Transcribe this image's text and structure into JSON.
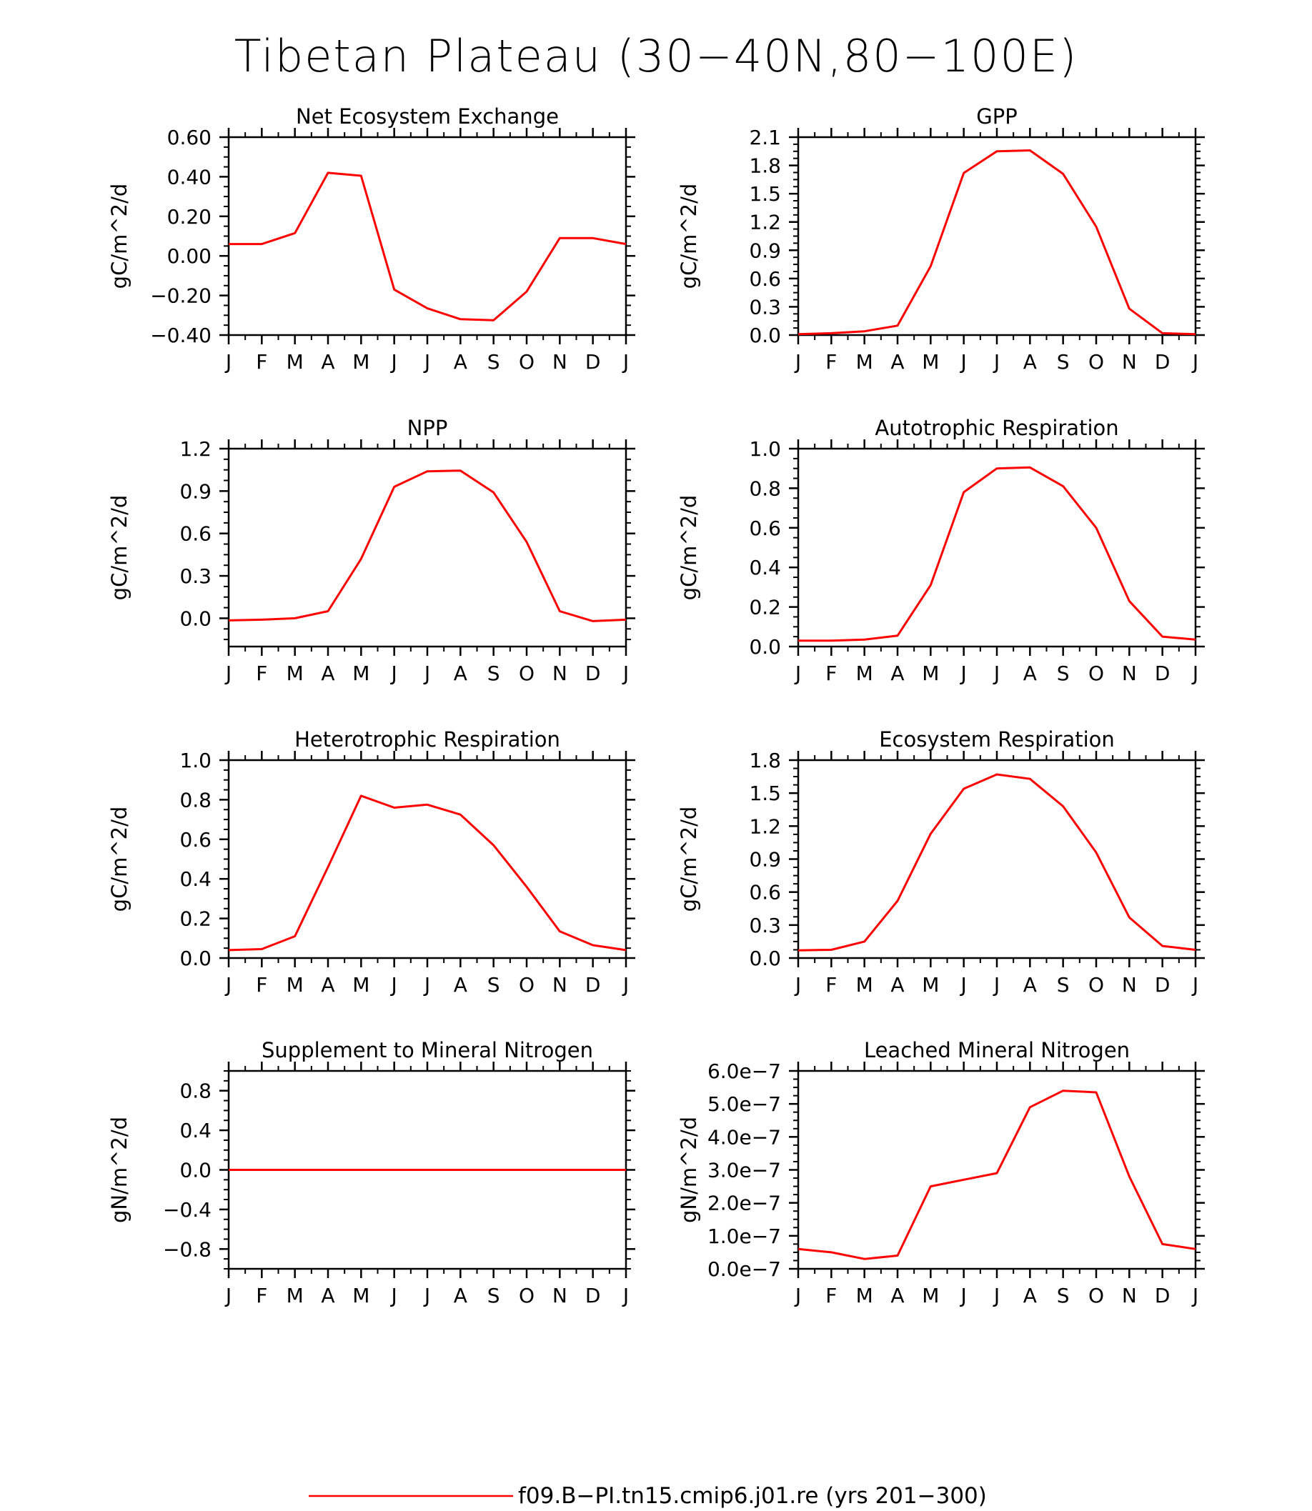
{
  "figure": {
    "title": "Tibetan Plateau (30−40N,80−100E)",
    "legend": {
      "label": "f09.B−PI.tn15.cmip6.j01.re (yrs 201−300)",
      "line_color": "#ff0000",
      "placement": "bottom-center"
    }
  },
  "chart_data": [
    {
      "type": "line",
      "title": "Net Ecosystem Exchange",
      "ylabel": "gC/m^2/d",
      "ylim": [
        -0.4,
        0.6
      ],
      "yticks": [
        -0.4,
        -0.2,
        0.0,
        0.2,
        0.4,
        0.6
      ],
      "ytick_labels": [
        "−0.40",
        "−0.20",
        "0.00",
        "0.20",
        "0.40",
        "0.60"
      ],
      "categories": [
        "J",
        "F",
        "M",
        "A",
        "M",
        "J",
        "J",
        "A",
        "S",
        "O",
        "N",
        "D",
        "J"
      ],
      "series": [
        {
          "color": "#ff0000",
          "values": [
            0.06,
            0.06,
            0.115,
            0.42,
            0.405,
            -0.17,
            -0.265,
            -0.32,
            -0.325,
            -0.18,
            0.09,
            0.09,
            0.06
          ]
        }
      ]
    },
    {
      "type": "line",
      "title": "GPP",
      "ylabel": "gC/m^2/d",
      "ylim": [
        0,
        2.1
      ],
      "yticks": [
        0,
        0.3,
        0.6,
        0.9,
        1.2,
        1.5,
        1.8,
        2.1
      ],
      "ytick_labels": [
        "0.0",
        "0.3",
        "0.6",
        "0.9",
        "1.2",
        "1.5",
        "1.8",
        "2.1"
      ],
      "categories": [
        "J",
        "F",
        "M",
        "A",
        "M",
        "J",
        "J",
        "A",
        "S",
        "O",
        "N",
        "D",
        "J"
      ],
      "series": [
        {
          "color": "#ff0000",
          "values": [
            0.01,
            0.02,
            0.04,
            0.1,
            0.73,
            1.72,
            1.95,
            1.96,
            1.71,
            1.15,
            0.28,
            0.02,
            0.01
          ]
        }
      ]
    },
    {
      "type": "line",
      "title": "NPP",
      "ylabel": "gC/m^2/d",
      "ylim": [
        -0.2,
        1.2
      ],
      "yticks": [
        0,
        0.3,
        0.6,
        0.9,
        1.2
      ],
      "ytick_labels": [
        "0.0",
        "0.3",
        "0.6",
        "0.9",
        "1.2"
      ],
      "categories": [
        "J",
        "F",
        "M",
        "A",
        "M",
        "J",
        "J",
        "A",
        "S",
        "O",
        "N",
        "D",
        "J"
      ],
      "series": [
        {
          "color": "#ff0000",
          "values": [
            -0.015,
            -0.01,
            0.0,
            0.05,
            0.42,
            0.93,
            1.04,
            1.045,
            0.89,
            0.54,
            0.05,
            -0.02,
            -0.01
          ]
        }
      ]
    },
    {
      "type": "line",
      "title": "Autotrophic Respiration",
      "ylabel": "gC/m^2/d",
      "ylim": [
        0,
        1.0
      ],
      "yticks": [
        0,
        0.2,
        0.4,
        0.6,
        0.8,
        1.0
      ],
      "ytick_labels": [
        "0.0",
        "0.2",
        "0.4",
        "0.6",
        "0.8",
        "1.0"
      ],
      "categories": [
        "J",
        "F",
        "M",
        "A",
        "M",
        "J",
        "J",
        "A",
        "S",
        "O",
        "N",
        "D",
        "J"
      ],
      "series": [
        {
          "color": "#ff0000",
          "values": [
            0.03,
            0.03,
            0.035,
            0.055,
            0.31,
            0.78,
            0.9,
            0.905,
            0.81,
            0.6,
            0.23,
            0.05,
            0.035
          ]
        }
      ]
    },
    {
      "type": "line",
      "title": "Heterotrophic Respiration",
      "ylabel": "gC/m^2/d",
      "ylim": [
        0,
        1.0
      ],
      "yticks": [
        0,
        0.2,
        0.4,
        0.6,
        0.8,
        1.0
      ],
      "ytick_labels": [
        "0.0",
        "0.2",
        "0.4",
        "0.6",
        "0.8",
        "1.0"
      ],
      "categories": [
        "J",
        "F",
        "M",
        "A",
        "M",
        "J",
        "J",
        "A",
        "S",
        "O",
        "N",
        "D",
        "J"
      ],
      "series": [
        {
          "color": "#ff0000",
          "values": [
            0.04,
            0.045,
            0.11,
            0.46,
            0.82,
            0.76,
            0.775,
            0.725,
            0.57,
            0.36,
            0.135,
            0.065,
            0.04
          ]
        }
      ]
    },
    {
      "type": "line",
      "title": "Ecosystem Respiration",
      "ylabel": "gC/m^2/d",
      "ylim": [
        0,
        1.8
      ],
      "yticks": [
        0,
        0.3,
        0.6,
        0.9,
        1.2,
        1.5,
        1.8
      ],
      "ytick_labels": [
        "0.0",
        "0.3",
        "0.6",
        "0.9",
        "1.2",
        "1.5",
        "1.8"
      ],
      "categories": [
        "J",
        "F",
        "M",
        "A",
        "M",
        "J",
        "J",
        "A",
        "S",
        "O",
        "N",
        "D",
        "J"
      ],
      "series": [
        {
          "color": "#ff0000",
          "values": [
            0.07,
            0.075,
            0.15,
            0.52,
            1.13,
            1.54,
            1.67,
            1.63,
            1.38,
            0.96,
            0.37,
            0.11,
            0.075
          ]
        }
      ]
    },
    {
      "type": "line",
      "title": "Supplement to Mineral Nitrogen",
      "ylabel": "gN/m^2/d",
      "ylim": [
        -1.0,
        1.0
      ],
      "yticks": [
        -0.8,
        -0.4,
        0.0,
        0.4,
        0.8
      ],
      "ytick_labels": [
        "−0.8",
        "−0.4",
        "0.0",
        "0.4",
        "0.8"
      ],
      "categories": [
        "J",
        "F",
        "M",
        "A",
        "M",
        "J",
        "J",
        "A",
        "S",
        "O",
        "N",
        "D",
        "J"
      ],
      "series": [
        {
          "color": "#ff0000",
          "values": [
            0,
            0,
            0,
            0,
            0,
            0,
            0,
            0,
            0,
            0,
            0,
            0,
            0
          ]
        }
      ]
    },
    {
      "type": "line",
      "title": "Leached Mineral Nitrogen",
      "ylabel": "gN/m^2/d",
      "ylim": [
        0,
        6e-07
      ],
      "yticks": [
        0,
        1e-07,
        2e-07,
        3e-07,
        4e-07,
        5e-07,
        6e-07
      ],
      "ytick_labels": [
        "0.0e−7",
        "1.0e−7",
        "2.0e−7",
        "3.0e−7",
        "4.0e−7",
        "5.0e−7",
        "6.0e−7"
      ],
      "categories": [
        "J",
        "F",
        "M",
        "A",
        "M",
        "J",
        "J",
        "A",
        "S",
        "O",
        "N",
        "D",
        "J"
      ],
      "series": [
        {
          "color": "#ff0000",
          "values": [
            6e-08,
            5e-08,
            3e-08,
            4e-08,
            2.5e-07,
            2.7e-07,
            2.9e-07,
            4.9e-07,
            5.4e-07,
            5.35e-07,
            2.8e-07,
            7.5e-08,
            6e-08
          ]
        }
      ]
    }
  ]
}
